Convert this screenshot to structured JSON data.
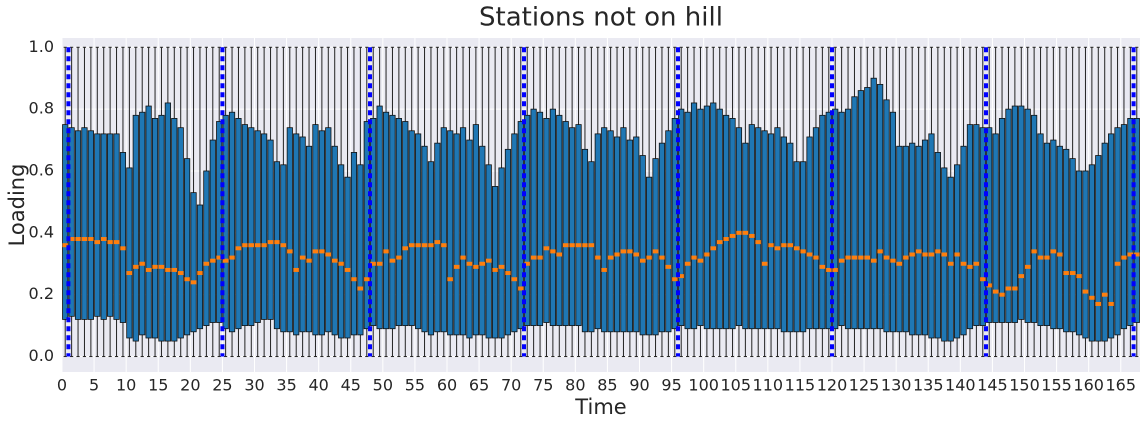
{
  "chart_data": {
    "type": "box",
    "title": "Stations not on hill",
    "x_label": "Time",
    "y_label": "Loading",
    "xlim": [
      0,
      168
    ],
    "xticks": [
      0,
      5,
      10,
      15,
      20,
      25,
      30,
      35,
      40,
      45,
      50,
      55,
      60,
      65,
      70,
      75,
      80,
      85,
      90,
      95,
      100,
      105,
      110,
      115,
      120,
      125,
      130,
      135,
      140,
      145,
      150,
      155,
      160,
      165
    ],
    "ylim": [
      -0.05,
      1.03
    ],
    "yticks": [
      {
        "value": 0,
        "label": "0.0"
      },
      0.2,
      0.4,
      0.6,
      0.8,
      {
        "value": 1,
        "label": "1.0"
      }
    ],
    "grid": true,
    "background": "#eaeaf2",
    "boxes": {
      "color": "#1f77b4",
      "median_color": "#ff7f0e",
      "q3": [
        0.75,
        0.74,
        0.73,
        0.74,
        0.73,
        0.72,
        0.72,
        0.72,
        0.72,
        0.66,
        0.61,
        0.78,
        0.79,
        0.81,
        0.77,
        0.78,
        0.82,
        0.77,
        0.74,
        0.64,
        0.53,
        0.49,
        0.6,
        0.7,
        0.76,
        0.78,
        0.79,
        0.77,
        0.75,
        0.74,
        0.73,
        0.72,
        0.7,
        0.63,
        0.62,
        0.74,
        0.72,
        0.71,
        0.68,
        0.75,
        0.73,
        0.74,
        0.68,
        0.62,
        0.58,
        0.66,
        0.62,
        0.76,
        0.77,
        0.81,
        0.79,
        0.78,
        0.77,
        0.76,
        0.73,
        0.72,
        0.68,
        0.63,
        0.69,
        0.74,
        0.73,
        0.72,
        0.74,
        0.7,
        0.75,
        0.68,
        0.62,
        0.55,
        0.61,
        0.67,
        0.72,
        0.76,
        0.78,
        0.8,
        0.79,
        0.77,
        0.8,
        0.78,
        0.76,
        0.74,
        0.75,
        0.67,
        0.63,
        0.72,
        0.74,
        0.73,
        0.71,
        0.74,
        0.7,
        0.71,
        0.65,
        0.58,
        0.64,
        0.69,
        0.73,
        0.77,
        0.8,
        0.79,
        0.82,
        0.8,
        0.81,
        0.82,
        0.8,
        0.78,
        0.77,
        0.74,
        0.69,
        0.75,
        0.74,
        0.73,
        0.72,
        0.74,
        0.71,
        0.69,
        0.63,
        0.63,
        0.71,
        0.74,
        0.78,
        0.79,
        0.8,
        0.79,
        0.8,
        0.84,
        0.86,
        0.87,
        0.9,
        0.88,
        0.83,
        0.79,
        0.68,
        0.68,
        0.69,
        0.68,
        0.7,
        0.72,
        0.66,
        0.61,
        0.58,
        0.62,
        0.68,
        0.75,
        0.75,
        0.74,
        0.74,
        0.72,
        0.77,
        0.8,
        0.81,
        0.81,
        0.8,
        0.78,
        0.72,
        0.69,
        0.7,
        0.68,
        0.67,
        0.64,
        0.6,
        0.6,
        0.62,
        0.65,
        0.69,
        0.72,
        0.74,
        0.75,
        0.77,
        0.77
      ],
      "q1": [
        0.12,
        0.13,
        0.12,
        0.12,
        0.12,
        0.13,
        0.12,
        0.13,
        0.12,
        0.11,
        0.06,
        0.05,
        0.07,
        0.06,
        0.06,
        0.05,
        0.05,
        0.05,
        0.06,
        0.07,
        0.08,
        0.09,
        0.1,
        0.11,
        0.11,
        0.09,
        0.08,
        0.09,
        0.1,
        0.1,
        0.11,
        0.12,
        0.12,
        0.09,
        0.08,
        0.08,
        0.07,
        0.08,
        0.08,
        0.07,
        0.07,
        0.08,
        0.07,
        0.06,
        0.06,
        0.07,
        0.07,
        0.09,
        0.1,
        0.09,
        0.09,
        0.09,
        0.1,
        0.1,
        0.1,
        0.09,
        0.08,
        0.07,
        0.08,
        0.08,
        0.07,
        0.07,
        0.07,
        0.06,
        0.07,
        0.07,
        0.06,
        0.06,
        0.06,
        0.07,
        0.08,
        0.09,
        0.1,
        0.1,
        0.1,
        0.11,
        0.1,
        0.1,
        0.1,
        0.1,
        0.1,
        0.08,
        0.08,
        0.09,
        0.08,
        0.08,
        0.08,
        0.08,
        0.08,
        0.08,
        0.07,
        0.07,
        0.07,
        0.08,
        0.08,
        0.09,
        0.1,
        0.09,
        0.09,
        0.1,
        0.09,
        0.09,
        0.09,
        0.09,
        0.09,
        0.1,
        0.09,
        0.09,
        0.09,
        0.09,
        0.09,
        0.09,
        0.08,
        0.08,
        0.08,
        0.08,
        0.09,
        0.09,
        0.09,
        0.09,
        0.09,
        0.1,
        0.09,
        0.09,
        0.09,
        0.09,
        0.09,
        0.09,
        0.08,
        0.08,
        0.08,
        0.08,
        0.07,
        0.07,
        0.07,
        0.06,
        0.06,
        0.05,
        0.05,
        0.06,
        0.07,
        0.09,
        0.1,
        0.1,
        0.11,
        0.11,
        0.11,
        0.11,
        0.11,
        0.12,
        0.11,
        0.11,
        0.1,
        0.1,
        0.09,
        0.09,
        0.08,
        0.08,
        0.07,
        0.06,
        0.05,
        0.05,
        0.05,
        0.06,
        0.07,
        0.09,
        0.1,
        0.11
      ],
      "median": [
        0.36,
        0.38,
        0.38,
        0.38,
        0.38,
        0.37,
        0.38,
        0.37,
        0.37,
        0.35,
        0.27,
        0.29,
        0.3,
        0.28,
        0.29,
        0.29,
        0.28,
        0.28,
        0.27,
        0.25,
        0.24,
        0.27,
        0.3,
        0.31,
        0.32,
        0.31,
        0.32,
        0.35,
        0.36,
        0.36,
        0.36,
        0.36,
        0.37,
        0.37,
        0.36,
        0.34,
        0.28,
        0.32,
        0.31,
        0.34,
        0.34,
        0.33,
        0.31,
        0.3,
        0.28,
        0.25,
        0.22,
        0.25,
        0.3,
        0.3,
        0.34,
        0.31,
        0.32,
        0.35,
        0.36,
        0.36,
        0.36,
        0.36,
        0.37,
        0.36,
        0.25,
        0.29,
        0.32,
        0.3,
        0.29,
        0.3,
        0.31,
        0.28,
        0.29,
        0.27,
        0.25,
        0.22,
        0.3,
        0.32,
        0.32,
        0.35,
        0.34,
        0.33,
        0.36,
        0.36,
        0.36,
        0.36,
        0.36,
        0.32,
        0.28,
        0.32,
        0.33,
        0.34,
        0.34,
        0.33,
        0.31,
        0.32,
        0.34,
        0.32,
        0.29,
        0.25,
        0.26,
        0.3,
        0.32,
        0.31,
        0.33,
        0.35,
        0.37,
        0.38,
        0.39,
        0.4,
        0.4,
        0.39,
        0.37,
        0.3,
        0.36,
        0.35,
        0.36,
        0.36,
        0.35,
        0.34,
        0.33,
        0.32,
        0.29,
        0.28,
        0.28,
        0.31,
        0.32,
        0.32,
        0.32,
        0.32,
        0.31,
        0.34,
        0.32,
        0.31,
        0.3,
        0.32,
        0.33,
        0.34,
        0.33,
        0.33,
        0.34,
        0.33,
        0.3,
        0.33,
        0.3,
        0.29,
        0.3,
        0.25,
        0.23,
        0.21,
        0.2,
        0.22,
        0.22,
        0.26,
        0.29,
        0.34,
        0.32,
        0.32,
        0.34,
        0.33,
        0.27,
        0.27,
        0.26,
        0.21,
        0.19,
        0.17,
        0.2,
        0.17,
        0.3,
        0.32,
        0.33,
        0.33
      ],
      "whislo": [
        0,
        0,
        0,
        0,
        0,
        0,
        0,
        0,
        0,
        0,
        0,
        0,
        0,
        0,
        0,
        0,
        0,
        0,
        0,
        0,
        0,
        0,
        0,
        0,
        0,
        0,
        0,
        0,
        0,
        0,
        0,
        0,
        0,
        0,
        0,
        0,
        0,
        0,
        0,
        0,
        0,
        0,
        0,
        0,
        0,
        0,
        0,
        0,
        0,
        0,
        0,
        0,
        0,
        0,
        0,
        0,
        0,
        0,
        0,
        0,
        0,
        0,
        0,
        0,
        0,
        0,
        0,
        0,
        0,
        0,
        0,
        0,
        0,
        0,
        0,
        0,
        0,
        0,
        0,
        0,
        0,
        0,
        0,
        0,
        0,
        0,
        0,
        0,
        0,
        0,
        0,
        0,
        0,
        0,
        0,
        0,
        0,
        0,
        0,
        0,
        0,
        0,
        0,
        0,
        0,
        0,
        0,
        0,
        0,
        0,
        0,
        0,
        0,
        0,
        0,
        0,
        0,
        0,
        0,
        0,
        0,
        0,
        0,
        0,
        0,
        0,
        0,
        0,
        0,
        0,
        0,
        0,
        0,
        0,
        0,
        0,
        0,
        0,
        0,
        0,
        0,
        0,
        0,
        0,
        0,
        0,
        0,
        0,
        0,
        0,
        0,
        0,
        0,
        0,
        0,
        0,
        0,
        0,
        0,
        0,
        0,
        0,
        0,
        0,
        0,
        0,
        0,
        0
      ],
      "whishi": [
        1,
        1,
        1,
        1,
        1,
        1,
        1,
        1,
        1,
        1,
        1,
        1,
        1,
        1,
        1,
        1,
        1,
        1,
        1,
        1,
        1,
        1,
        1,
        1,
        1,
        1,
        1,
        1,
        1,
        1,
        1,
        1,
        1,
        1,
        1,
        1,
        1,
        1,
        1,
        1,
        1,
        1,
        1,
        1,
        1,
        1,
        1,
        1,
        1,
        1,
        1,
        1,
        1,
        1,
        1,
        1,
        1,
        1,
        1,
        1,
        1,
        1,
        1,
        1,
        1,
        1,
        1,
        1,
        1,
        1,
        1,
        1,
        1,
        1,
        1,
        1,
        1,
        1,
        1,
        1,
        1,
        1,
        1,
        1,
        1,
        1,
        1,
        1,
        1,
        1,
        1,
        1,
        1,
        1,
        1,
        1,
        1,
        1,
        1,
        1,
        1,
        1,
        1,
        1,
        1,
        1,
        1,
        1,
        1,
        1,
        1,
        1,
        1,
        1,
        1,
        1,
        1,
        1,
        1,
        1,
        1,
        1,
        1,
        1,
        1,
        1,
        1,
        1,
        1,
        1,
        1,
        1,
        1,
        1,
        1,
        1,
        1,
        1,
        1,
        1,
        1,
        1,
        1,
        1,
        1,
        1,
        1,
        1,
        1,
        1,
        1,
        1,
        1,
        1,
        1,
        1,
        1,
        1,
        1,
        1,
        1,
        1,
        1,
        1,
        1,
        1,
        1,
        1
      ]
    },
    "vlines": {
      "x": [
        1,
        25,
        48,
        72,
        96,
        120,
        144,
        167
      ],
      "color": "#0000ff"
    }
  }
}
